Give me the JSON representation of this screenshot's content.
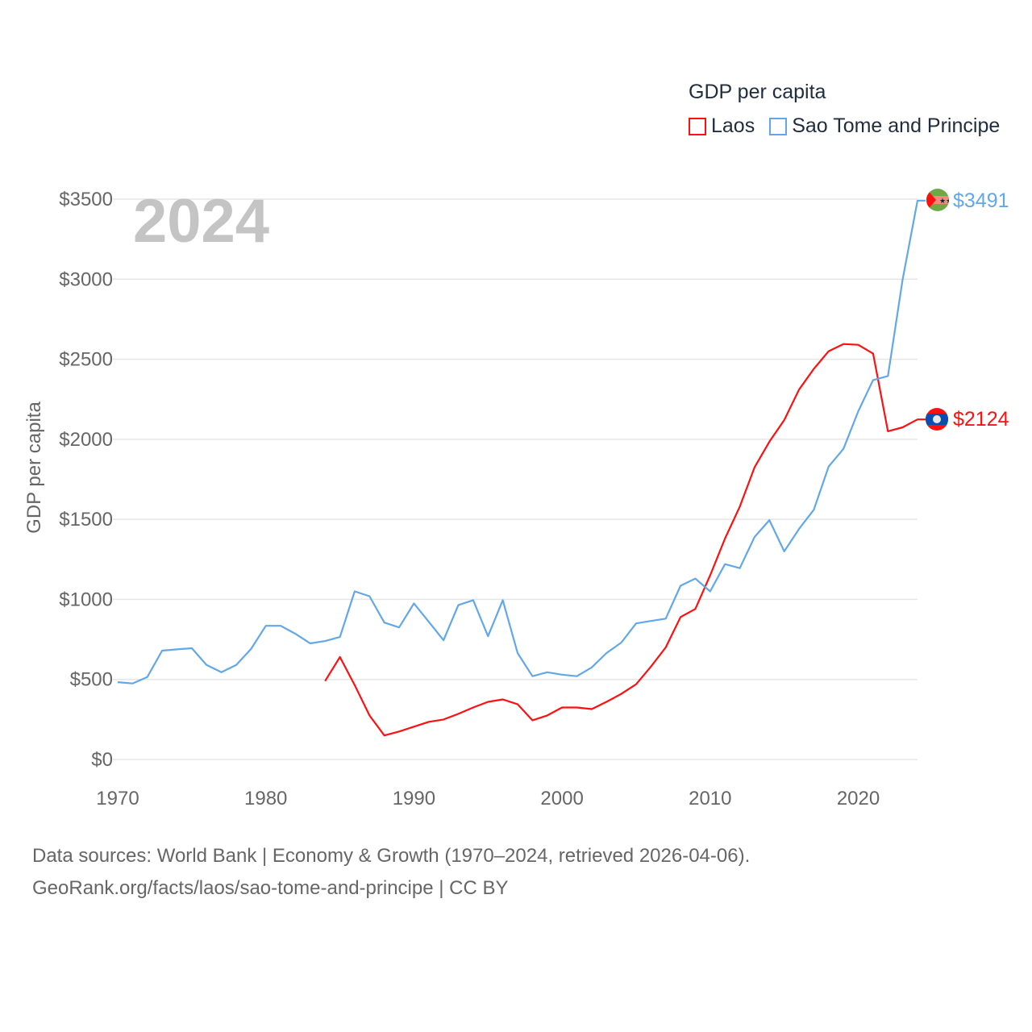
{
  "chart_data": {
    "type": "line",
    "title": "GDP per capita",
    "year_label": "2024",
    "xlabel": "",
    "ylabel": "GDP per capita",
    "xlim": [
      1970,
      2024
    ],
    "ylim": [
      0,
      3500
    ],
    "x_ticks": [
      "1970",
      "1980",
      "1990",
      "2000",
      "2010",
      "2020"
    ],
    "y_ticks": [
      "$0",
      "$500",
      "$1000",
      "$1500",
      "$2000",
      "$2500",
      "$3000",
      "$3500"
    ],
    "y_tick_values": [
      0,
      500,
      1000,
      1500,
      2000,
      2500,
      3000,
      3500
    ],
    "grid": true,
    "legend_position": "top-right",
    "series": [
      {
        "name": "Laos",
        "color": "#ff1010",
        "end_label": "$2124",
        "x": [
          1984,
          1985,
          1986,
          1987,
          1988,
          1989,
          1990,
          1991,
          1992,
          1993,
          1994,
          1995,
          1996,
          1997,
          1998,
          1999,
          2000,
          2001,
          2002,
          2003,
          2004,
          2005,
          2006,
          2007,
          2008,
          2009,
          2010,
          2011,
          2012,
          2013,
          2014,
          2015,
          2016,
          2017,
          2018,
          2019,
          2020,
          2021,
          2022,
          2023,
          2024
        ],
        "values": [
          490,
          640,
          465,
          275,
          150,
          175,
          205,
          235,
          250,
          285,
          325,
          360,
          375,
          345,
          245,
          275,
          325,
          325,
          315,
          360,
          410,
          470,
          580,
          700,
          890,
          940,
          1150,
          1380,
          1580,
          1825,
          1985,
          2120,
          2310,
          2440,
          2550,
          2595,
          2590,
          2535,
          2050,
          2075,
          2124
        ]
      },
      {
        "name": "Sao Tome and Principe",
        "color": "#62a8e8",
        "end_label": "$3491",
        "x": [
          1970,
          1971,
          1972,
          1973,
          1974,
          1975,
          1976,
          1977,
          1978,
          1979,
          1980,
          1981,
          1982,
          1983,
          1984,
          1985,
          1986,
          1987,
          1988,
          1989,
          1990,
          1991,
          1992,
          1993,
          1994,
          1995,
          1996,
          1997,
          1998,
          1999,
          2000,
          2001,
          2002,
          2003,
          2004,
          2005,
          2006,
          2007,
          2008,
          2009,
          2010,
          2011,
          2012,
          2013,
          2014,
          2015,
          2016,
          2017,
          2018,
          2019,
          2020,
          2021,
          2022,
          2023,
          2024
        ],
        "values": [
          483,
          475,
          515,
          680,
          688,
          695,
          590,
          545,
          590,
          690,
          835,
          835,
          785,
          725,
          740,
          765,
          1050,
          1020,
          855,
          825,
          975,
          860,
          745,
          965,
          995,
          770,
          995,
          665,
          520,
          545,
          530,
          520,
          575,
          665,
          730,
          850,
          865,
          880,
          1085,
          1130,
          1050,
          1220,
          1195,
          1390,
          1495,
          1300,
          1440,
          1560,
          1830,
          1940,
          2175,
          2370,
          2395,
          3000,
          3491
        ]
      }
    ]
  },
  "footer": {
    "line1": "Data sources: World Bank | Economy & Growth (1970–2024, retrieved 2026-04-06).",
    "line2": "GeoRank.org/facts/laos/sao-tome-and-principe | CC BY"
  }
}
